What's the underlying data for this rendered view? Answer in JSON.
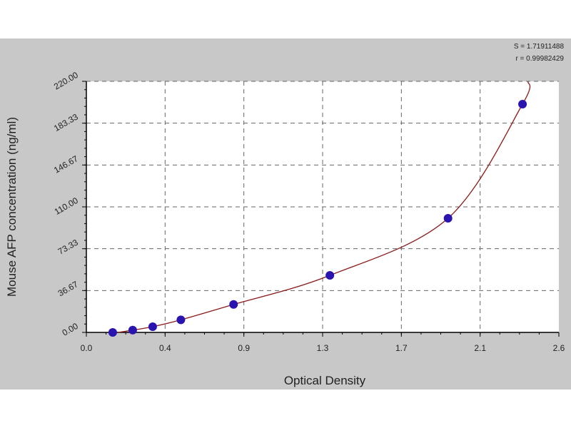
{
  "chart_data": {
    "type": "scatter",
    "title": "",
    "xlabel": "Optical Density",
    "ylabel": "Mouse AFP concentration (ng/ml)",
    "xlim": [
      0,
      2.6
    ],
    "ylim": [
      0,
      220
    ],
    "x_tick_labels": [
      "0.0",
      "0.4",
      "0.9",
      "1.3",
      "1.7",
      "2.1",
      "2.6"
    ],
    "y_tick_labels": [
      "0.00",
      "36.67",
      "73.33",
      "110.00",
      "146.67",
      "183.33",
      "220.00"
    ],
    "grid": true,
    "stats": [
      "S = 1.71911488",
      "r = 0.99982429"
    ],
    "points": [
      {
        "x": 0.145,
        "y": 0
      },
      {
        "x": 0.255,
        "y": 2
      },
      {
        "x": 0.365,
        "y": 5
      },
      {
        "x": 0.52,
        "y": 11
      },
      {
        "x": 0.81,
        "y": 24.5
      },
      {
        "x": 1.34,
        "y": 50
      },
      {
        "x": 1.99,
        "y": 100
      },
      {
        "x": 2.4,
        "y": 200
      }
    ],
    "fit_curve_end": {
      "x": 2.43,
      "y": 220
    },
    "colors": {
      "points": "#2a14b0",
      "curve": "#8b1a1a",
      "background": "#c8c8c8"
    }
  }
}
